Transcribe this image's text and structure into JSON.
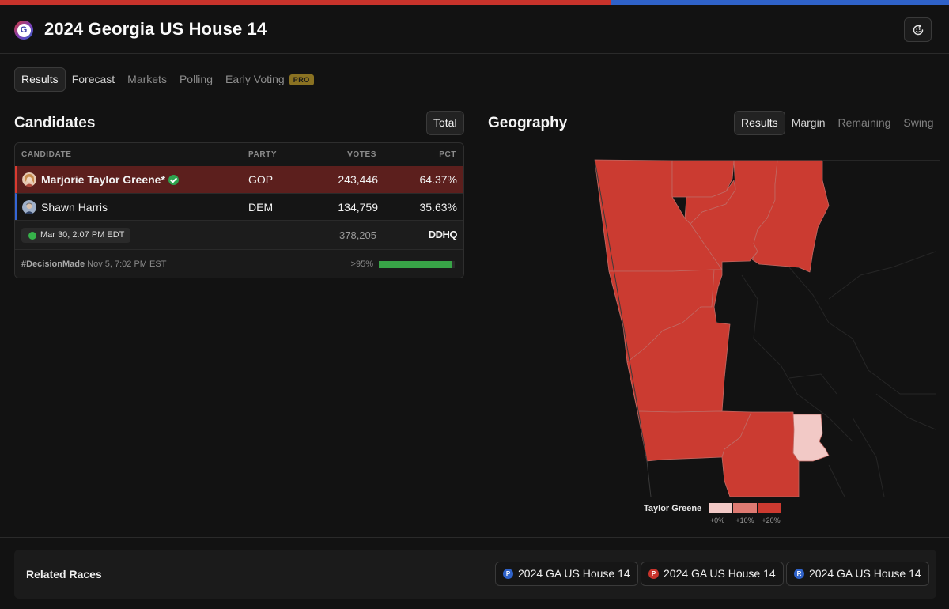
{
  "header": {
    "logo_letter": "G",
    "title": "2024 Georgia US House 14",
    "action_icon": "refresh-smile-icon"
  },
  "colors": {
    "rep": "#c8332b",
    "dem": "#2f62c9",
    "gop_row": "#5c1f1d",
    "pro_badge": "#8a7222",
    "status_green": "#36b24a"
  },
  "tabs": [
    {
      "label": "Results",
      "active": true
    },
    {
      "label": "Forecast"
    },
    {
      "label": "Markets"
    },
    {
      "label": "Polling"
    },
    {
      "label": "Early Voting",
      "badge": "PRO"
    }
  ],
  "candidates": {
    "title": "Candidates",
    "toggle": "Total",
    "columns": {
      "candidate": "CANDIDATE",
      "party": "PARTY",
      "votes": "VOTES",
      "pct": "PCT"
    },
    "rows": [
      {
        "name": "Marjorie Taylor Greene*",
        "party": "GOP",
        "votes": "243,446",
        "pct": "64.37%",
        "winner": true
      },
      {
        "name": "Shawn Harris",
        "party": "DEM",
        "votes": "134,759",
        "pct": "35.63%"
      }
    ],
    "updated": "Mar 30, 2:07 PM EDT",
    "total_votes": "378,205",
    "source": "DDHQ",
    "decision_tag": "#DecisionMade",
    "decision_time": "Nov 5, 7:02 PM EST",
    "expected_reporting": ">95%",
    "reporting_fraction": 0.97
  },
  "geography": {
    "title": "Geography",
    "tabs": [
      {
        "label": "Results",
        "active": true
      },
      {
        "label": "Margin"
      },
      {
        "label": "Remaining"
      },
      {
        "label": "Swing"
      }
    ],
    "legend": {
      "label": "Taylor Greene",
      "steps": [
        {
          "label": "+0%",
          "color": "#f2c9c6"
        },
        {
          "label": "+10%",
          "color": "#de7a72"
        },
        {
          "label": "+20%",
          "color": "#cc3a30"
        }
      ]
    }
  },
  "related": {
    "title": "Related Races",
    "items": [
      {
        "badge": "P",
        "label": "2024 GA US House 14",
        "color": "#2f62c9"
      },
      {
        "badge": "P",
        "label": "2024 GA US House 14",
        "color": "#c8332b"
      },
      {
        "badge": "R",
        "label": "2024 GA US House 14",
        "color": "#2f62c9"
      }
    ]
  }
}
